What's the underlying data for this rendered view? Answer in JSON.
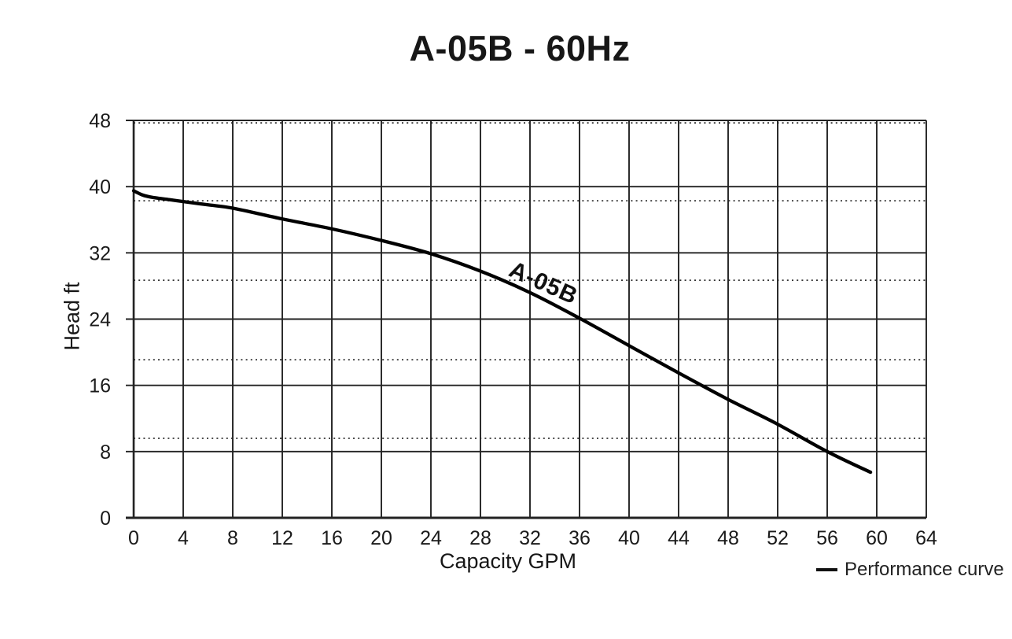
{
  "colors": {
    "background": "#ffffff",
    "curve": "#000000",
    "grid": "#222222",
    "dotted_grid": "#333333",
    "text": "#1a1a1a"
  },
  "legend": {
    "position": "bottom-right",
    "swatch": "line-dash"
  },
  "chart_data": {
    "type": "line",
    "title": "A-05B - 60Hz",
    "xlabel": "Capacity GPM",
    "ylabel": "Head ft",
    "xlim": [
      0,
      64
    ],
    "ylim": [
      0,
      48
    ],
    "x_ticks": [
      0,
      4,
      8,
      12,
      16,
      20,
      24,
      28,
      32,
      36,
      40,
      44,
      48,
      52,
      56,
      60,
      64
    ],
    "y_ticks": [
      0,
      8,
      16,
      24,
      32,
      40,
      48
    ],
    "dotted_hlines": [
      9.6,
      19.1,
      28.7,
      38.3,
      47.7
    ],
    "grid": "solid major gridlines both axes; dotted horizontal sub-gridlines",
    "legend_position": "bottom-right",
    "series": [
      {
        "name": "Performance curve",
        "label": "A-05B",
        "color": "#000000",
        "points": [
          [
            0,
            39.5
          ],
          [
            0.7,
            39.0
          ],
          [
            1.5,
            38.7
          ],
          [
            3,
            38.4
          ],
          [
            4,
            38.2
          ],
          [
            6,
            37.8
          ],
          [
            8,
            37.4
          ],
          [
            12,
            36.1
          ],
          [
            16,
            34.9
          ],
          [
            20,
            33.5
          ],
          [
            24,
            31.9
          ],
          [
            28,
            29.8
          ],
          [
            32,
            27.2
          ],
          [
            36,
            24.1
          ],
          [
            40,
            20.8
          ],
          [
            44,
            17.5
          ],
          [
            48,
            14.3
          ],
          [
            52,
            11.3
          ],
          [
            56,
            8.0
          ],
          [
            59.5,
            5.5
          ]
        ]
      }
    ]
  }
}
